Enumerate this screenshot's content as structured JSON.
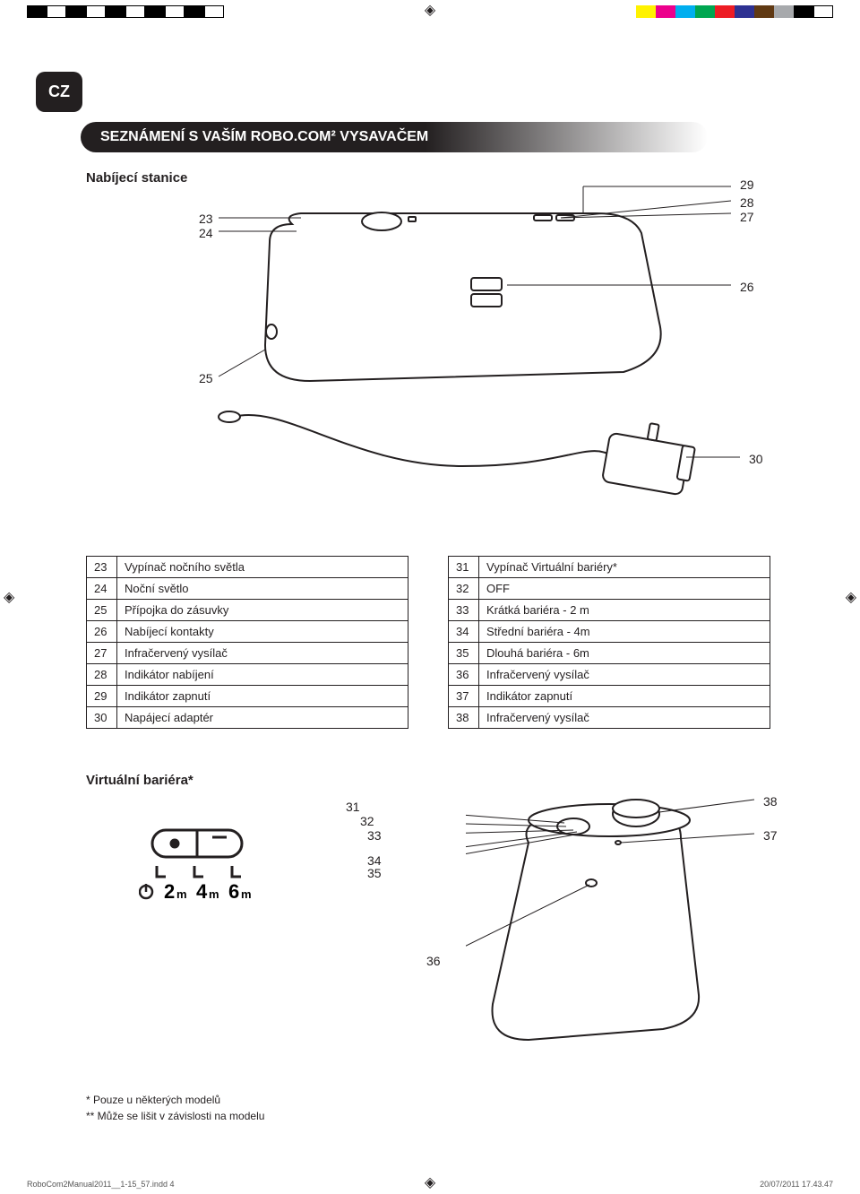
{
  "print": {
    "file": "RoboCom2Manual2011__1-15_57.indd   4",
    "timestamp": "20/07/2011   17.43.47",
    "reg_cross": "◈",
    "swatches_left": [
      "#000000",
      "#ffffff",
      "#000000",
      "#ffffff",
      "#000000",
      "#ffffff",
      "#000000",
      "#ffffff",
      "#000000",
      "#ffffff"
    ],
    "swatches_right": [
      "#fff200",
      "#ec008c",
      "#00aeef",
      "#00a651",
      "#ed1c24",
      "#2e3192",
      "#603913",
      "#a7a9ac",
      "#000000",
      "#ffffff"
    ]
  },
  "lang_tab": "CZ",
  "section_title": "SEZNÁMENÍ S VAŠÍM ROBO.COM² VYSAVAČEM",
  "subhead1": "Nabíjecí stanice",
  "subhead2": "Virtuální bariéra*",
  "callouts_fig1": {
    "c23": "23",
    "c24": "24",
    "c25": "25",
    "c26": "26",
    "c27": "27",
    "c28": "28",
    "c29": "29",
    "c30": "30"
  },
  "callouts_fig2": {
    "c31": "31",
    "c32": "32",
    "c33": "33",
    "c34": "34",
    "c35": "35",
    "c36": "36",
    "c37": "37",
    "c38": "38"
  },
  "table_left": [
    {
      "n": "23",
      "t": "Vypínač nočního světla"
    },
    {
      "n": "24",
      "t": "Noční světlo"
    },
    {
      "n": "25",
      "t": "Přípojka do zásuvky"
    },
    {
      "n": "26",
      "t": "Nabíjecí kontakty"
    },
    {
      "n": "27",
      "t": "Infračervený vysílač"
    },
    {
      "n": "28",
      "t": "Indikátor nabíjení"
    },
    {
      "n": "29",
      "t": "Indikátor zapnutí"
    },
    {
      "n": "30",
      "t": "Napájecí adaptér"
    }
  ],
  "table_right": [
    {
      "n": "31",
      "t": "Vypínač Virtuální bariéry*"
    },
    {
      "n": "32",
      "t": "OFF"
    },
    {
      "n": "33",
      "t": "Krátká bariéra - 2 m"
    },
    {
      "n": "34",
      "t": "Střední bariéra - 4m"
    },
    {
      "n": "35",
      "t": "Dlouhá bariéra - 6m"
    },
    {
      "n": "36",
      "t": "Infračervený vysílač"
    },
    {
      "n": "37",
      "t": "Indikátor zapnutí"
    },
    {
      "n": "38",
      "t": "Infračervený vysílač"
    }
  ],
  "vb_icon": {
    "l1": "2",
    "u1": "m",
    "l2": "4",
    "u2": "m",
    "l3": "6",
    "u3": "m"
  },
  "footnote1": "* Pouze u některých modelů",
  "footnote2": "** Může se lišit v závislosti na modelu"
}
